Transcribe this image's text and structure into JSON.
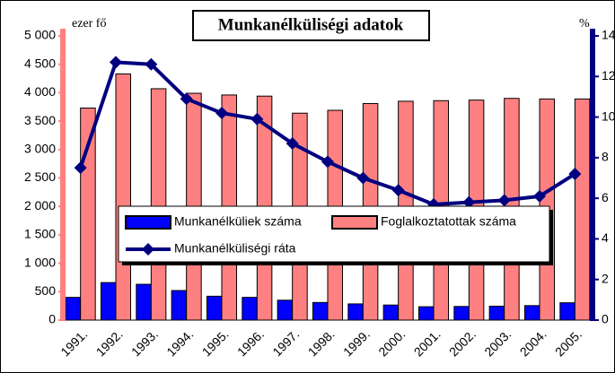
{
  "chart_data": {
    "type": "bar",
    "title": "Munkanélküliségi adatok",
    "y_label": "ezer fő",
    "y2_label": "%",
    "categories": [
      "1991.",
      "1992.",
      "1993.",
      "1994.",
      "1995.",
      "1996.",
      "1997.",
      "1998.",
      "1999.",
      "2000.",
      "2001.",
      "2002.",
      "2003.",
      "2004.",
      "2005."
    ],
    "series": [
      {
        "name": "Munkanélküliek száma",
        "color": "#0000ff",
        "values": [
          400,
          660,
          630,
          520,
          420,
          400,
          350,
          310,
          285,
          265,
          235,
          240,
          245,
          255,
          305
        ]
      },
      {
        "name": "Foglalkoztatottak száma",
        "color": "#ff8080",
        "values": [
          3730,
          4330,
          4070,
          3990,
          3960,
          3940,
          3640,
          3690,
          3810,
          3850,
          3860,
          3870,
          3900,
          3890,
          3890
        ]
      },
      {
        "name": "Munkanélküliségi ráta",
        "color": "#000080",
        "type": "line",
        "axis": "y2",
        "values": [
          7.5,
          12.7,
          12.6,
          10.9,
          10.2,
          9.9,
          8.7,
          7.8,
          7.0,
          6.4,
          5.7,
          5.8,
          5.9,
          6.1,
          7.2
        ]
      }
    ],
    "ylim": [
      0,
      5000
    ],
    "yticks": [
      0,
      500,
      {
        "value": 1000,
        "label": "1 000"
      },
      {
        "value": 1500,
        "label": "1 500"
      },
      {
        "value": 2000,
        "label": "2 000"
      },
      {
        "value": 2500,
        "label": "2 500"
      },
      {
        "value": 3000,
        "label": "3 000"
      },
      {
        "value": 3500,
        "label": "3 500"
      },
      {
        "value": 4000,
        "label": "4 000"
      },
      {
        "value": 4500,
        "label": "4 500"
      },
      {
        "value": 5000,
        "label": "5 000"
      }
    ],
    "y2lim": [
      0,
      14
    ],
    "y2ticks": [
      0,
      2,
      4,
      6,
      8,
      10,
      12,
      14
    ],
    "grid": false
  }
}
